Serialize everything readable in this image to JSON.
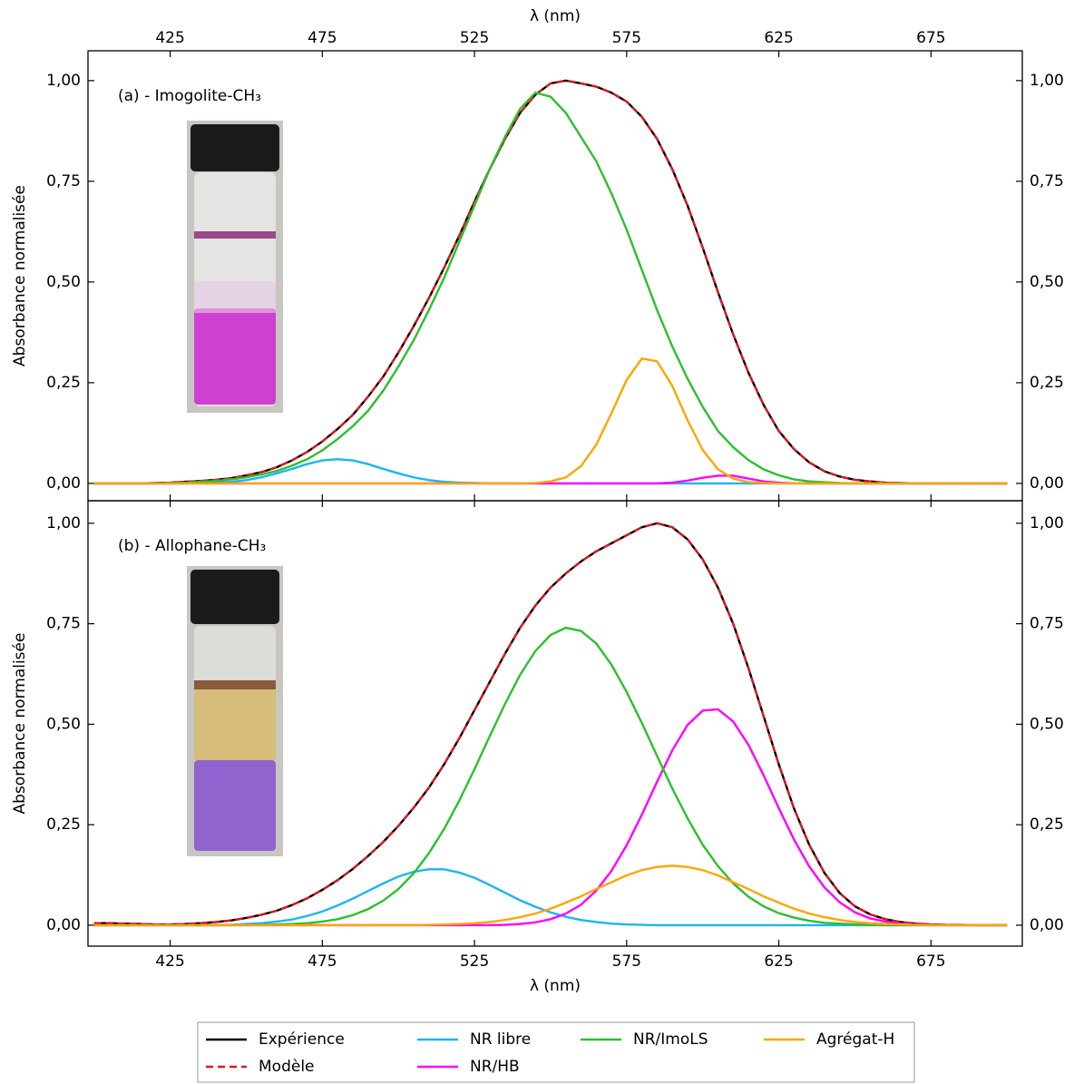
{
  "chart_data": [
    {
      "type": "line",
      "label": "(a) - Imogolite-CH₃",
      "xlabel": "λ (nm)",
      "xaxis": "top",
      "ylabel": "Absorbance normalisée",
      "xlim": [
        398,
        705
      ],
      "xticks": [
        425,
        475,
        525,
        575,
        625,
        675
      ],
      "ylim": [
        -0.043,
        1.074
      ],
      "yticks": [
        {
          "value": 0,
          "label": "0,00"
        },
        {
          "value": 0.25,
          "label": "0,25"
        },
        {
          "value": 0.5,
          "label": "0,50"
        },
        {
          "value": 0.75,
          "label": "0,75"
        },
        {
          "value": 1,
          "label": "1,00"
        }
      ],
      "x": [
        400,
        405,
        410,
        415,
        420,
        425,
        430,
        435,
        440,
        445,
        450,
        455,
        460,
        465,
        470,
        475,
        480,
        485,
        490,
        495,
        500,
        505,
        510,
        515,
        520,
        525,
        530,
        535,
        540,
        545,
        550,
        555,
        560,
        565,
        570,
        575,
        580,
        585,
        590,
        595,
        600,
        605,
        610,
        615,
        620,
        625,
        630,
        635,
        640,
        645,
        650,
        655,
        660,
        665,
        670,
        675,
        680,
        685,
        690,
        695,
        700
      ],
      "series": [
        {
          "name": "Expérience",
          "color": "#000000",
          "dashed": false,
          "values": [
            0,
            0,
            0,
            0,
            0.001,
            0.002,
            0.004,
            0.006,
            0.009,
            0.013,
            0.02,
            0.028,
            0.04,
            0.057,
            0.078,
            0.104,
            0.135,
            0.17,
            0.215,
            0.265,
            0.325,
            0.39,
            0.46,
            0.535,
            0.615,
            0.7,
            0.78,
            0.855,
            0.92,
            0.965,
            0.993,
            1.0,
            0.993,
            0.985,
            0.97,
            0.948,
            0.91,
            0.855,
            0.78,
            0.69,
            0.585,
            0.475,
            0.37,
            0.275,
            0.195,
            0.13,
            0.085,
            0.052,
            0.03,
            0.017,
            0.009,
            0.005,
            0.002,
            0.001,
            0,
            0,
            0,
            0,
            0,
            0,
            0
          ]
        },
        {
          "name": "Modèle",
          "color": "#e8131b",
          "dashed": true,
          "values": [
            0,
            0,
            0,
            0,
            0.001,
            0.002,
            0.004,
            0.006,
            0.009,
            0.013,
            0.02,
            0.028,
            0.04,
            0.057,
            0.078,
            0.104,
            0.135,
            0.17,
            0.215,
            0.265,
            0.325,
            0.39,
            0.46,
            0.535,
            0.615,
            0.7,
            0.78,
            0.855,
            0.92,
            0.965,
            0.993,
            1.0,
            0.993,
            0.985,
            0.97,
            0.948,
            0.91,
            0.855,
            0.78,
            0.69,
            0.585,
            0.475,
            0.37,
            0.275,
            0.195,
            0.13,
            0.085,
            0.052,
            0.03,
            0.017,
            0.009,
            0.005,
            0.002,
            0.001,
            0,
            0,
            0,
            0,
            0,
            0,
            0
          ]
        },
        {
          "name": "NR libre",
          "color": "#1cb5f0",
          "dashed": false,
          "values": [
            0,
            0,
            0,
            0,
            0,
            0,
            0,
            0.001,
            0.002,
            0.004,
            0.008,
            0.015,
            0.025,
            0.036,
            0.048,
            0.057,
            0.06,
            0.057,
            0.048,
            0.036,
            0.025,
            0.015,
            0.008,
            0.004,
            0.002,
            0.001,
            0,
            0,
            0,
            0,
            0,
            0,
            0,
            0,
            0,
            0,
            0,
            0,
            0,
            0,
            0,
            0,
            0,
            0,
            0,
            0,
            0,
            0,
            0,
            0,
            0,
            0,
            0,
            0,
            0,
            0,
            0,
            0,
            0,
            0,
            0
          ]
        },
        {
          "name": "NR/HB",
          "color": "#ff00ff",
          "dashed": false,
          "values": [
            0,
            0,
            0,
            0,
            0,
            0,
            0,
            0,
            0,
            0,
            0,
            0,
            0,
            0,
            0,
            0,
            0,
            0,
            0,
            0,
            0,
            0,
            0,
            0,
            0,
            0,
            0,
            0,
            0,
            0,
            0,
            0,
            0,
            0,
            0,
            0,
            0,
            0,
            0.002,
            0.007,
            0.014,
            0.019,
            0.019,
            0.012,
            0.005,
            0.002,
            0,
            0,
            0,
            0,
            0,
            0,
            0,
            0,
            0,
            0,
            0,
            0,
            0,
            0,
            0
          ]
        },
        {
          "name": "NR/ImoLS",
          "color": "#2cc02c",
          "dashed": false,
          "values": [
            0,
            0,
            0,
            0,
            0,
            0.001,
            0.002,
            0.004,
            0.006,
            0.01,
            0.015,
            0.022,
            0.031,
            0.044,
            0.06,
            0.082,
            0.11,
            0.142,
            0.18,
            0.23,
            0.29,
            0.355,
            0.43,
            0.51,
            0.6,
            0.69,
            0.78,
            0.86,
            0.93,
            0.97,
            0.96,
            0.92,
            0.86,
            0.8,
            0.72,
            0.63,
            0.53,
            0.43,
            0.34,
            0.26,
            0.19,
            0.13,
            0.09,
            0.058,
            0.035,
            0.02,
            0.01,
            0.005,
            0.003,
            0.001,
            0,
            0,
            0,
            0,
            0,
            0,
            0,
            0,
            0,
            0,
            0
          ]
        },
        {
          "name": "Agrégat-H",
          "color": "#ffa500",
          "dashed": false,
          "values": [
            0,
            0,
            0,
            0,
            0,
            0,
            0,
            0,
            0,
            0,
            0,
            0,
            0,
            0,
            0,
            0,
            0,
            0,
            0,
            0,
            0,
            0,
            0,
            0,
            0,
            0,
            0,
            0,
            0,
            0.001,
            0.005,
            0.015,
            0.043,
            0.096,
            0.174,
            0.257,
            0.31,
            0.303,
            0.242,
            0.157,
            0.083,
            0.035,
            0.012,
            0.003,
            0.001,
            0,
            0,
            0,
            0,
            0,
            0,
            0,
            0,
            0,
            0,
            0,
            0,
            0,
            0,
            0,
            0
          ]
        }
      ]
    },
    {
      "type": "line",
      "label": "(b) - Allophane-CH₃",
      "xlabel": "λ (nm)",
      "xaxis": "bottom",
      "ylabel": "Absorbance normalisée",
      "xlim": [
        398,
        705
      ],
      "xticks": [
        425,
        475,
        525,
        575,
        625,
        675
      ],
      "ylim": [
        -0.052,
        1.056
      ],
      "yticks": [
        {
          "value": 0,
          "label": "0,00"
        },
        {
          "value": 0.25,
          "label": "0,25"
        },
        {
          "value": 0.5,
          "label": "0,50"
        },
        {
          "value": 0.75,
          "label": "0,75"
        },
        {
          "value": 1,
          "label": "1,00"
        }
      ],
      "x": [
        400,
        405,
        410,
        415,
        420,
        425,
        430,
        435,
        440,
        445,
        450,
        455,
        460,
        465,
        470,
        475,
        480,
        485,
        490,
        495,
        500,
        505,
        510,
        515,
        520,
        525,
        530,
        535,
        540,
        545,
        550,
        555,
        560,
        565,
        570,
        575,
        580,
        585,
        590,
        595,
        600,
        605,
        610,
        615,
        620,
        625,
        630,
        635,
        640,
        645,
        650,
        655,
        660,
        665,
        670,
        675,
        680,
        685,
        690,
        695,
        700
      ],
      "series": [
        {
          "color": "#000000",
          "dashed": false,
          "values": [
            0.005,
            0.005,
            0.004,
            0.003,
            0.002,
            0.002,
            0.003,
            0.005,
            0.008,
            0.012,
            0.018,
            0.026,
            0.036,
            0.05,
            0.067,
            0.088,
            0.112,
            0.14,
            0.172,
            0.207,
            0.247,
            0.292,
            0.342,
            0.4,
            0.465,
            0.535,
            0.605,
            0.675,
            0.74,
            0.795,
            0.84,
            0.875,
            0.905,
            0.93,
            0.95,
            0.97,
            0.99,
            1.0,
            0.99,
            0.96,
            0.91,
            0.84,
            0.75,
            0.64,
            0.52,
            0.4,
            0.29,
            0.2,
            0.13,
            0.08,
            0.047,
            0.027,
            0.015,
            0.008,
            0.004,
            0.002,
            0.001,
            0.001,
            0,
            0,
            0
          ]
        },
        {
          "color": "#e8131b",
          "dashed": true,
          "values": [
            0.005,
            0.005,
            0.004,
            0.003,
            0.002,
            0.002,
            0.003,
            0.005,
            0.008,
            0.012,
            0.018,
            0.026,
            0.036,
            0.05,
            0.067,
            0.088,
            0.112,
            0.14,
            0.172,
            0.207,
            0.247,
            0.292,
            0.342,
            0.4,
            0.465,
            0.535,
            0.605,
            0.675,
            0.74,
            0.795,
            0.84,
            0.875,
            0.905,
            0.93,
            0.95,
            0.97,
            0.99,
            1.0,
            0.99,
            0.96,
            0.91,
            0.84,
            0.75,
            0.64,
            0.52,
            0.4,
            0.29,
            0.2,
            0.13,
            0.08,
            0.047,
            0.027,
            0.015,
            0.008,
            0.004,
            0.002,
            0.001,
            0.001,
            0,
            0,
            0
          ]
        },
        {
          "color": "#1cb5f0",
          "dashed": false,
          "values": [
            0,
            0,
            0,
            0,
            0,
            0,
            0,
            0,
            0.001,
            0.001,
            0.003,
            0.005,
            0.009,
            0.014,
            0.023,
            0.034,
            0.049,
            0.066,
            0.085,
            0.104,
            0.121,
            0.133,
            0.139,
            0.139,
            0.131,
            0.118,
            0.1,
            0.081,
            0.062,
            0.046,
            0.032,
            0.021,
            0.013,
            0.008,
            0.004,
            0.002,
            0.001,
            0,
            0,
            0,
            0,
            0,
            0,
            0,
            0,
            0,
            0,
            0,
            0,
            0,
            0,
            0,
            0,
            0,
            0,
            0,
            0,
            0,
            0,
            0,
            0
          ]
        },
        {
          "color": "#ff00ff",
          "dashed": false,
          "values": [
            0,
            0,
            0,
            0,
            0,
            0,
            0,
            0,
            0,
            0,
            0,
            0,
            0,
            0,
            0,
            0,
            0,
            0,
            0,
            0,
            0,
            0,
            0,
            0,
            0,
            0,
            0,
            0.001,
            0.003,
            0.007,
            0.015,
            0.029,
            0.051,
            0.086,
            0.135,
            0.199,
            0.275,
            0.357,
            0.435,
            0.498,
            0.534,
            0.537,
            0.507,
            0.449,
            0.373,
            0.291,
            0.213,
            0.146,
            0.094,
            0.057,
            0.032,
            0.017,
            0.009,
            0.004,
            0.002,
            0.001,
            0,
            0,
            0,
            0,
            0
          ]
        },
        {
          "color": "#2cc02c",
          "dashed": false,
          "values": [
            0,
            0,
            0,
            0,
            0,
            0,
            0,
            0,
            0,
            0,
            0,
            0.001,
            0.002,
            0.003,
            0.005,
            0.009,
            0.015,
            0.025,
            0.04,
            0.061,
            0.09,
            0.129,
            0.179,
            0.239,
            0.31,
            0.388,
            0.47,
            0.55,
            0.623,
            0.682,
            0.722,
            0.74,
            0.732,
            0.701,
            0.648,
            0.58,
            0.503,
            0.421,
            0.34,
            0.266,
            0.2,
            0.147,
            0.104,
            0.071,
            0.047,
            0.03,
            0.019,
            0.011,
            0.006,
            0.004,
            0.002,
            0.001,
            0,
            0,
            0,
            0,
            0,
            0,
            0,
            0,
            0
          ]
        },
        {
          "color": "#ffa500",
          "dashed": false,
          "values": [
            0,
            0,
            0,
            0,
            0,
            0,
            0,
            0,
            0,
            0,
            0,
            0,
            0,
            0,
            0,
            0,
            0,
            0,
            0,
            0,
            0,
            0,
            0.001,
            0.002,
            0.003,
            0.005,
            0.008,
            0.013,
            0.02,
            0.029,
            0.041,
            0.056,
            0.072,
            0.09,
            0.107,
            0.124,
            0.137,
            0.145,
            0.148,
            0.145,
            0.137,
            0.124,
            0.107,
            0.09,
            0.072,
            0.056,
            0.041,
            0.029,
            0.02,
            0.013,
            0.008,
            0.005,
            0.003,
            0.002,
            0.001,
            0,
            0,
            0,
            0,
            0,
            0
          ]
        }
      ]
    }
  ]
}
